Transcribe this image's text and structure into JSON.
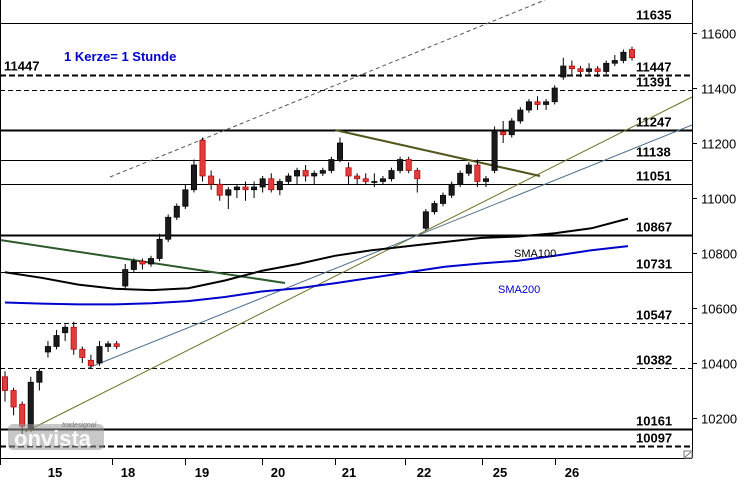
{
  "chart_data": {
    "type": "candlestick",
    "subtitle": "1 Kerze= 1 Stunde",
    "ylim": [
      10080,
      11680
    ],
    "y_ticks": [
      10200,
      10400,
      10600,
      10800,
      11000,
      11200,
      11400,
      11600
    ],
    "y_tick_labels": [
      "10200",
      "10400",
      "10600",
      "10800",
      "11000",
      "11200",
      "11400",
      "11600"
    ],
    "x_tick_labels": [
      "15",
      "18",
      "19",
      "20",
      "21",
      "22",
      "25",
      "26"
    ],
    "grid": false,
    "levels": [
      {
        "value": 11635,
        "label": "11635",
        "style": "solid"
      },
      {
        "value": 11447,
        "label": "11447",
        "style": "dashed-bold",
        "label_left": "11447"
      },
      {
        "value": 11391,
        "label": "11391",
        "style": "dashed"
      },
      {
        "value": 11247,
        "label": "11247",
        "style": "solid-bold"
      },
      {
        "value": 11138,
        "label": "11138",
        "style": "solid"
      },
      {
        "value": 11051,
        "label": "11051",
        "style": "solid"
      },
      {
        "value": 10867,
        "label": "10867",
        "style": "solid-bold"
      },
      {
        "value": 10731,
        "label": "10731",
        "style": "solid"
      },
      {
        "value": 10547,
        "label": "10547",
        "style": "dashed"
      },
      {
        "value": 10382,
        "label": "10382",
        "style": "dashed"
      },
      {
        "value": 10161,
        "label": "10161",
        "style": "solid-bold"
      },
      {
        "value": 10097,
        "label": "10097",
        "style": "dashed-bold"
      }
    ],
    "series": [
      {
        "name": "SMA100",
        "color": "#000000",
        "values": [
          10730,
          10710,
          10685,
          10670,
          10665,
          10672,
          10700,
          10735,
          10760,
          10790,
          10810,
          10825,
          10840,
          10855,
          10860,
          10872,
          10890,
          10925
        ]
      },
      {
        "name": "SMA200",
        "color": "#0000cc",
        "values": [
          10620,
          10616,
          10613,
          10613,
          10617,
          10625,
          10640,
          10660,
          10672,
          10690,
          10710,
          10730,
          10750,
          10762,
          10772,
          10790,
          10810,
          10825
        ]
      }
    ],
    "candles": [
      [
        10350,
        10370,
        10260,
        10300
      ],
      [
        10300,
        10310,
        10210,
        10240
      ],
      [
        10250,
        10260,
        10140,
        10170
      ],
      [
        10160,
        10350,
        10150,
        10330
      ],
      [
        10330,
        10380,
        10300,
        10370
      ],
      [
        10440,
        10480,
        10420,
        10460
      ],
      [
        10460,
        10520,
        10450,
        10500
      ],
      [
        10510,
        10540,
        10480,
        10530
      ],
      [
        10530,
        10550,
        10430,
        10450
      ],
      [
        10450,
        10460,
        10400,
        10420
      ],
      [
        10410,
        10430,
        10380,
        10390
      ],
      [
        10400,
        10480,
        10390,
        10460
      ],
      [
        10460,
        10480,
        10440,
        10470
      ],
      [
        10470,
        10480,
        10450,
        10460
      ],
      [
        10680,
        10760,
        10670,
        10740
      ],
      [
        10740,
        10780,
        10730,
        10770
      ],
      [
        10770,
        10780,
        10740,
        10760
      ],
      [
        10760,
        10790,
        10750,
        10780
      ],
      [
        10780,
        10870,
        10770,
        10850
      ],
      [
        10850,
        10940,
        10840,
        10930
      ],
      [
        10930,
        10980,
        10920,
        10970
      ],
      [
        10970,
        11050,
        10960,
        11030
      ],
      [
        11030,
        11140,
        11020,
        11120
      ],
      [
        11210,
        11220,
        11060,
        11080
      ],
      [
        11080,
        11100,
        11030,
        11050
      ],
      [
        11050,
        11070,
        10990,
        11010
      ],
      [
        11010,
        11040,
        10960,
        11030
      ],
      [
        11030,
        11050,
        11000,
        11040
      ],
      [
        11040,
        11060,
        10990,
        11030
      ],
      [
        11030,
        11060,
        11000,
        11040
      ],
      [
        11040,
        11080,
        11020,
        11070
      ],
      [
        11070,
        11090,
        11020,
        11030
      ],
      [
        11030,
        11070,
        11010,
        11060
      ],
      [
        11060,
        11090,
        11050,
        11080
      ],
      [
        11080,
        11110,
        11050,
        11100
      ],
      [
        11100,
        11120,
        11060,
        11080
      ],
      [
        11080,
        11100,
        11050,
        11090
      ],
      [
        11090,
        11110,
        11080,
        11100
      ],
      [
        11100,
        11150,
        11090,
        11140
      ],
      [
        11140,
        11220,
        11130,
        11200
      ],
      [
        11110,
        11130,
        11050,
        11080
      ],
      [
        11080,
        11090,
        11050,
        11070
      ],
      [
        11070,
        11090,
        11050,
        11060
      ],
      [
        11060,
        11090,
        11040,
        11060
      ],
      [
        11060,
        11080,
        11050,
        11070
      ],
      [
        11070,
        11110,
        11060,
        11100
      ],
      [
        11100,
        11150,
        11090,
        11140
      ],
      [
        11140,
        11150,
        11090,
        11100
      ],
      [
        11100,
        11110,
        11020,
        11070
      ],
      [
        10890,
        10960,
        10880,
        10950
      ],
      [
        10950,
        10990,
        10940,
        10980
      ],
      [
        10980,
        11020,
        10970,
        11010
      ],
      [
        11010,
        11060,
        11000,
        11050
      ],
      [
        11050,
        11100,
        11040,
        11090
      ],
      [
        11090,
        11130,
        11080,
        11120
      ],
      [
        11120,
        11140,
        11040,
        11060
      ],
      [
        11060,
        11080,
        11040,
        11070
      ],
      [
        11100,
        11260,
        11090,
        11240
      ],
      [
        11240,
        11280,
        11200,
        11230
      ],
      [
        11230,
        11290,
        11220,
        11280
      ],
      [
        11280,
        11330,
        11270,
        11320
      ],
      [
        11320,
        11360,
        11310,
        11350
      ],
      [
        11350,
        11370,
        11320,
        11340
      ],
      [
        11340,
        11360,
        11320,
        11350
      ],
      [
        11350,
        11410,
        11340,
        11400
      ],
      [
        11440,
        11510,
        11430,
        11480
      ],
      [
        11480,
        11500,
        11450,
        11470
      ],
      [
        11470,
        11480,
        11440,
        11460
      ],
      [
        11460,
        11490,
        11450,
        11470
      ],
      [
        11470,
        11480,
        11440,
        11460
      ],
      [
        11460,
        11500,
        11450,
        11490
      ],
      [
        11490,
        11520,
        11480,
        11500
      ],
      [
        11500,
        11540,
        11490,
        11530
      ],
      [
        11540,
        11550,
        11500,
        11510
      ]
    ],
    "annotations": [
      {
        "text": "SMA100"
      },
      {
        "text": "SMA200"
      }
    ]
  },
  "watermark": "onvista tradesignal"
}
